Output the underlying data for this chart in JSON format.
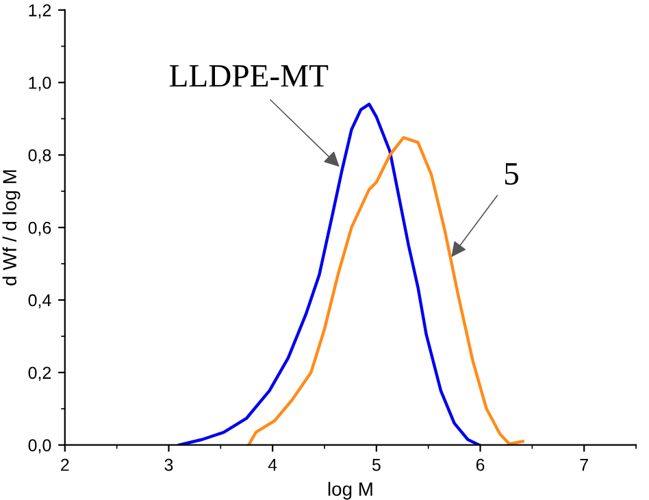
{
  "chart_data": {
    "type": "line",
    "xlabel": "log M",
    "ylabel": "d Wf / d log M",
    "xlim": [
      2,
      7.5
    ],
    "ylim": [
      0,
      1.2
    ],
    "xticks": [
      2,
      3,
      4,
      5,
      6,
      7
    ],
    "yticks": [
      {
        "value": 0,
        "label": "0,0"
      },
      {
        "value": 0.2,
        "label": "0,2"
      },
      {
        "value": 0.4,
        "label": "0,4"
      },
      {
        "value": 0.6,
        "label": "0,6"
      },
      {
        "value": 0.8,
        "label": "0,8"
      },
      {
        "value": 1.0,
        "label": "1,0"
      },
      {
        "value": 1.2,
        "label": "1,2"
      }
    ],
    "grid": false,
    "legend": false,
    "marker": "none",
    "line_style": "solid",
    "series": [
      {
        "color": "#0000ee",
        "x": [
          3.1,
          3.32,
          3.53,
          3.75,
          3.97,
          4.15,
          4.32,
          4.45,
          4.58,
          4.67,
          4.76,
          4.85,
          4.93,
          5.0,
          5.13,
          5.22,
          5.31,
          5.4,
          5.48,
          5.62,
          5.75,
          5.88,
          5.99
        ],
        "values": [
          0,
          0.015,
          0.035,
          0.074,
          0.15,
          0.24,
          0.36,
          0.47,
          0.64,
          0.76,
          0.87,
          0.925,
          0.94,
          0.905,
          0.81,
          0.68,
          0.55,
          0.435,
          0.305,
          0.15,
          0.06,
          0.015,
          0
        ]
      },
      {
        "color": "#ff8c1a",
        "x": [
          3.77,
          3.84,
          4.02,
          4.19,
          4.37,
          4.5,
          4.63,
          4.76,
          4.93,
          5.0,
          5.13,
          5.26,
          5.4,
          5.53,
          5.66,
          5.79,
          5.93,
          6.06,
          6.19,
          6.28,
          6.41
        ],
        "values": [
          0,
          0.035,
          0.067,
          0.125,
          0.2,
          0.32,
          0.47,
          0.6,
          0.705,
          0.725,
          0.8,
          0.848,
          0.835,
          0.745,
          0.59,
          0.41,
          0.23,
          0.1,
          0.03,
          0.003,
          0.01
        ]
      }
    ],
    "annotations": [
      {
        "text": "LLDPE-MT",
        "x": 4.67,
        "y": 0.76
      },
      {
        "text": "5",
        "x": 5.7,
        "y": 0.51
      }
    ]
  }
}
